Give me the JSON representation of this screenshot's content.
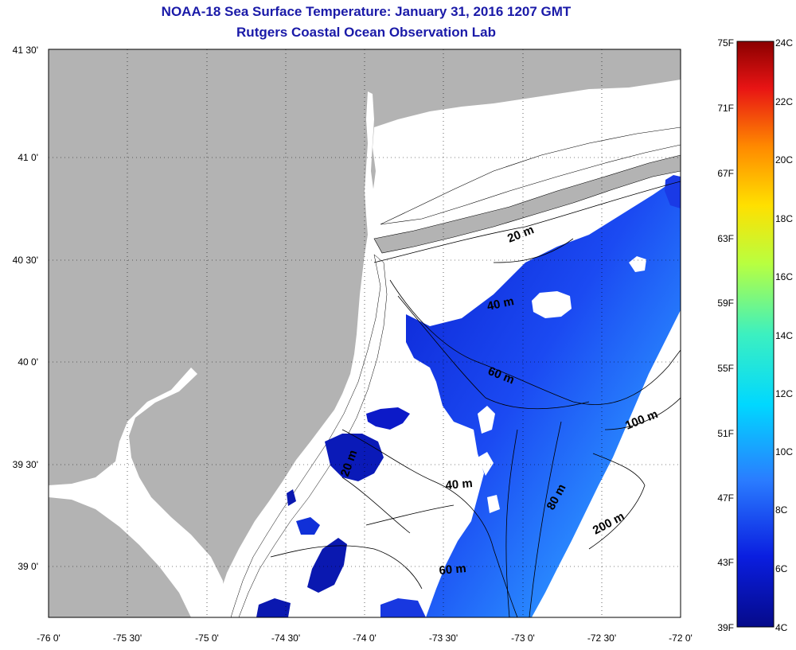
{
  "title_line1": "NOAA-18 Sea Surface Temperature:  January 31, 2016 1207 GMT",
  "title_line2": "Rutgers Coastal Ocean Observation Lab",
  "lat_ticks": [
    "41 30'",
    "41 0'",
    "40 30'",
    "40 0'",
    "39 30'",
    "39 0'"
  ],
  "lon_ticks": [
    "-76 0'",
    "-75 30'",
    "-75 0'",
    "-74 30'",
    "-74 0'",
    "-73 30'",
    "-73 0'",
    "-72 30'",
    "-72 0'"
  ],
  "colorbar": {
    "fahrenheit": [
      "75F",
      "71F",
      "67F",
      "63F",
      "59F",
      "55F",
      "51F",
      "47F",
      "43F",
      "39F"
    ],
    "celsius": [
      "24C",
      "22C",
      "20C",
      "18C",
      "16C",
      "14C",
      "12C",
      "10C",
      "8C",
      "6C",
      "4C"
    ],
    "colors": [
      "#8b0000",
      "#e01010",
      "#ff7a00",
      "#ffd000",
      "#d8ff28",
      "#58f5a0",
      "#00e6ff",
      "#2a8cff",
      "#1838e8",
      "#050a8a"
    ]
  },
  "depth_labels": [
    "20 m",
    "40 m",
    "60 m",
    "100 m",
    "20 m",
    "40 m",
    "80 m",
    "200 m",
    "60 m"
  ],
  "colors": {
    "land": "#b3b3b3",
    "no_data": "#ffffff",
    "title": "#1a1aa8"
  }
}
